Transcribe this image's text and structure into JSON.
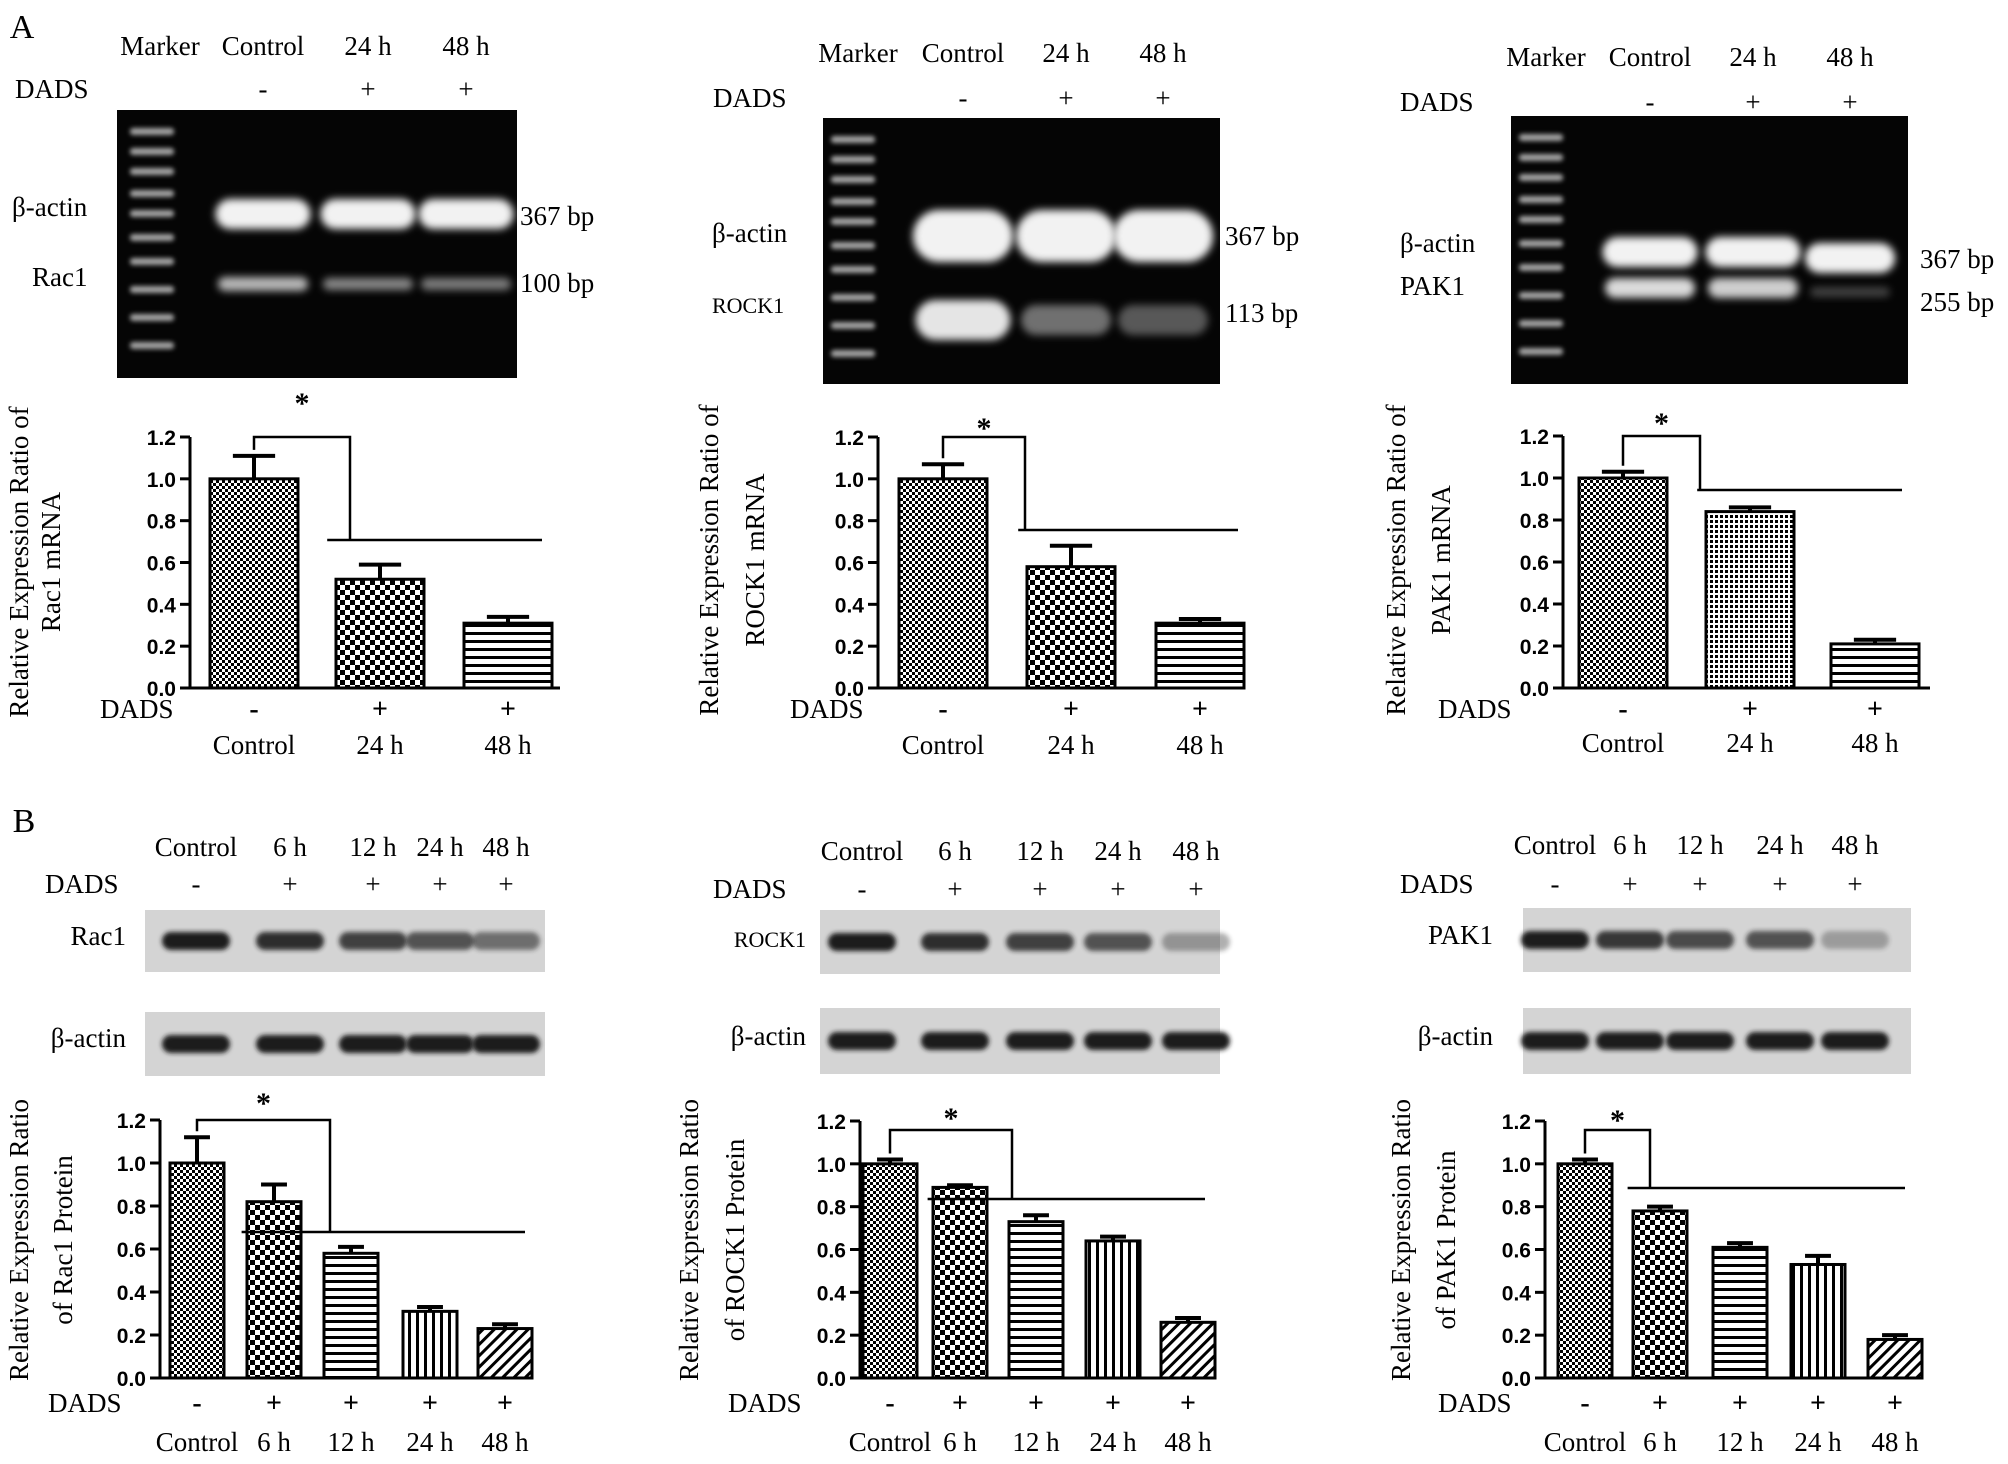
{
  "figure": {
    "section_labels": [
      "A",
      "B"
    ],
    "hatch_colors": {
      "ink": "#000000",
      "background": "#ffffff",
      "gel": "#050505",
      "band": "#f2f2f2",
      "blot": "#d4d4d4",
      "protein_band": "#1a1a1a"
    }
  },
  "gels": [
    {
      "lane_headers": [
        "Marker",
        "Control",
        "24 h",
        "48 h"
      ],
      "dads_label": "DADS",
      "dads_signs": [
        "-",
        "+",
        "+"
      ],
      "band_labels": [
        "β-actin",
        "Rac1"
      ],
      "bp_labels": [
        "367 bp",
        "100 bp"
      ]
    },
    {
      "lane_headers": [
        "Marker",
        "Control",
        "24 h",
        "48 h"
      ],
      "dads_label": "DADS",
      "dads_signs": [
        "-",
        "+",
        "+"
      ],
      "band_labels": [
        "β-actin",
        "ROCK1"
      ],
      "bp_labels": [
        "367 bp",
        "113 bp"
      ]
    },
    {
      "lane_headers": [
        "Marker",
        "Control",
        "24 h",
        "48 h"
      ],
      "dads_label": "DADS",
      "dads_signs": [
        "-",
        "+",
        "+"
      ],
      "band_labels": [
        "β-actin",
        "PAK1"
      ],
      "bp_labels": [
        "367 bp",
        "255 bp"
      ]
    }
  ],
  "blots": [
    {
      "lane_headers": [
        "Control",
        "6 h",
        "12 h",
        "24 h",
        "48 h"
      ],
      "dads_label": "DADS",
      "dads_signs": [
        "-",
        "+",
        "+",
        "+",
        "+"
      ],
      "band_labels": [
        "Rac1",
        "β-actin"
      ]
    },
    {
      "lane_headers": [
        "Control",
        "6 h",
        "12 h",
        "24 h",
        "48 h"
      ],
      "dads_label": "DADS",
      "dads_signs": [
        "-",
        "+",
        "+",
        "+",
        "+"
      ],
      "band_labels": [
        "ROCK1",
        "β-actin"
      ]
    },
    {
      "lane_headers": [
        "Control",
        "6 h",
        "12 h",
        "24 h",
        "48 h"
      ],
      "dads_label": "DADS",
      "dads_signs": [
        "-",
        "+",
        "+",
        "+",
        "+"
      ],
      "band_labels": [
        "PAK1",
        "β-actin"
      ]
    }
  ],
  "chart_data": [
    {
      "type": "bar",
      "ylabel_lines": [
        "Relative  Expression Ratio of",
        "Rac1 mRNA"
      ],
      "categories": [
        "Control",
        "24 h",
        "48 h"
      ],
      "dads_label": "DADS",
      "dads_signs": [
        "-",
        "+",
        "+"
      ],
      "values": [
        1.0,
        0.52,
        0.31
      ],
      "errors": [
        0.11,
        0.07,
        0.03
      ],
      "ylim": [
        0,
        1.2
      ],
      "yticks": [
        "0.0",
        "0.2",
        "0.4",
        "0.6",
        "0.8",
        "1.0",
        "1.2"
      ],
      "patterns": [
        "check",
        "bigcheck",
        "hlines"
      ],
      "significance": "*"
    },
    {
      "type": "bar",
      "ylabel_lines": [
        "Relative  Expression Ratio of",
        "ROCK1 mRNA"
      ],
      "categories": [
        "Control",
        "24 h",
        "48 h"
      ],
      "dads_label": "DADS",
      "dads_signs": [
        "-",
        "+",
        "+"
      ],
      "values": [
        1.0,
        0.58,
        0.31
      ],
      "errors": [
        0.07,
        0.1,
        0.02
      ],
      "ylim": [
        0,
        1.2
      ],
      "yticks": [
        "0.0",
        "0.2",
        "0.4",
        "0.6",
        "0.8",
        "1.0",
        "1.2"
      ],
      "patterns": [
        "check",
        "bigcheck",
        "hlines"
      ],
      "significance": "*"
    },
    {
      "type": "bar",
      "ylabel_lines": [
        "Relative  Expression Ratio of",
        "PAK1 mRNA"
      ],
      "categories": [
        "Control",
        "24 h",
        "48 h"
      ],
      "dads_label": "DADS",
      "dads_signs": [
        "-",
        "+",
        "+"
      ],
      "values": [
        1.0,
        0.84,
        0.21
      ],
      "errors": [
        0.03,
        0.02,
        0.02
      ],
      "ylim": [
        0,
        1.2
      ],
      "yticks": [
        "0.0",
        "0.2",
        "0.4",
        "0.6",
        "0.8",
        "1.0",
        "1.2"
      ],
      "patterns": [
        "check",
        "dots",
        "hlines"
      ],
      "significance": "*"
    },
    {
      "type": "bar",
      "ylabel_lines": [
        "Relative  Expression Ratio",
        "of  Rac1 Protein"
      ],
      "categories": [
        "Control",
        "6 h",
        "12 h",
        "24 h",
        "48 h"
      ],
      "dads_label": "DADS",
      "dads_signs": [
        "-",
        "+",
        "+",
        "+",
        "+"
      ],
      "values": [
        1.0,
        0.82,
        0.58,
        0.31,
        0.23
      ],
      "errors": [
        0.12,
        0.08,
        0.03,
        0.02,
        0.02
      ],
      "ylim": [
        0,
        1.2
      ],
      "yticks": [
        "0.0",
        "0.2",
        "0.4",
        "0.6",
        "0.8",
        "1.0",
        "1.2"
      ],
      "patterns": [
        "check",
        "bigcheck",
        "hlines",
        "vlines",
        "diag"
      ],
      "significance": "*"
    },
    {
      "type": "bar",
      "ylabel_lines": [
        "Relative  Expression Ratio",
        "of ROCK1 Protein"
      ],
      "categories": [
        "Control",
        "6 h",
        "12 h",
        "24 h",
        "48 h"
      ],
      "dads_label": "DADS",
      "dads_signs": [
        "-",
        "+",
        "+",
        "+",
        "+"
      ],
      "values": [
        1.0,
        0.89,
        0.73,
        0.64,
        0.26
      ],
      "errors": [
        0.02,
        0.01,
        0.03,
        0.02,
        0.02
      ],
      "ylim": [
        0,
        1.2
      ],
      "yticks": [
        "0.0",
        "0.2",
        "0.4",
        "0.6",
        "0.8",
        "1.0",
        "1.2"
      ],
      "patterns": [
        "check",
        "bigcheck",
        "hlines",
        "vlines",
        "diag"
      ],
      "significance": "*"
    },
    {
      "type": "bar",
      "ylabel_lines": [
        "Relative  Expression Ratio",
        "of  PAK1 Protein"
      ],
      "categories": [
        "Control",
        "6 h",
        "12 h",
        "24 h",
        "48 h"
      ],
      "dads_label": "DADS",
      "dads_signs": [
        "-",
        "+",
        "+",
        "+",
        "+"
      ],
      "values": [
        1.0,
        0.78,
        0.61,
        0.53,
        0.18
      ],
      "errors": [
        0.02,
        0.02,
        0.02,
        0.04,
        0.02
      ],
      "ylim": [
        0,
        1.2
      ],
      "yticks": [
        "0.0",
        "0.2",
        "0.4",
        "0.6",
        "0.8",
        "1.0",
        "1.2"
      ],
      "patterns": [
        "check",
        "bigcheck",
        "hlines",
        "vlines",
        "diag"
      ],
      "significance": "*"
    }
  ]
}
